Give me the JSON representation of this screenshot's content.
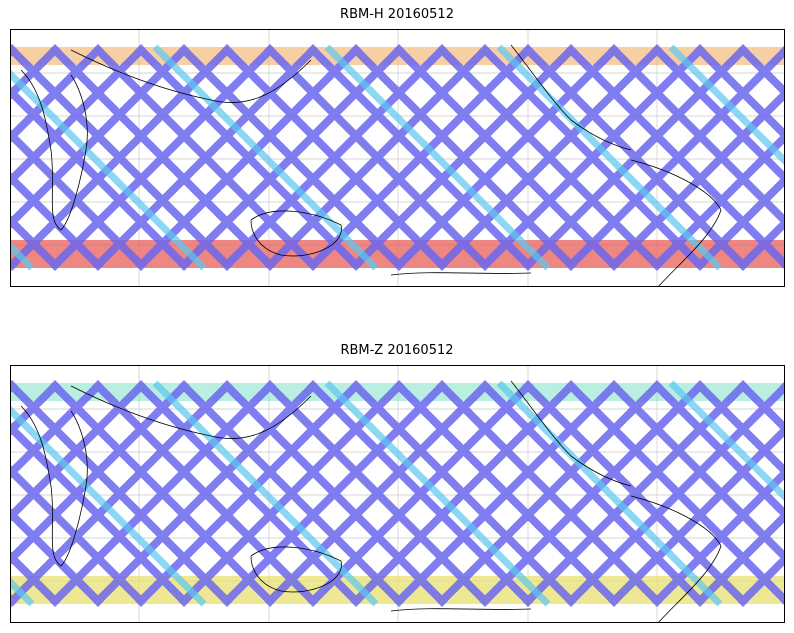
{
  "panels": [
    {
      "title": "RBM-H 20160512",
      "colors": {
        "south_band": "#e85d58",
        "north_band": "#f0a85a",
        "tracks": "#6b67ee"
      }
    },
    {
      "title": "RBM-Z 20160512",
      "colors": {
        "south_band": "#e8e070",
        "north_band": "#7fe0c8",
        "tracks": "#6b67ee"
      }
    }
  ]
}
